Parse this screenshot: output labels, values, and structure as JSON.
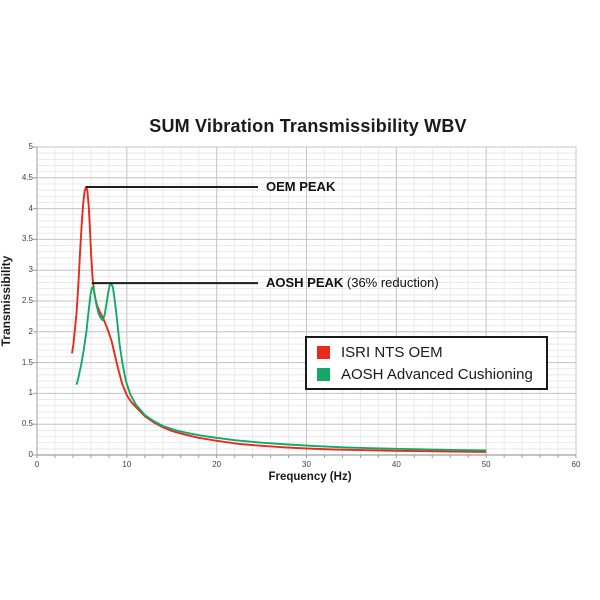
{
  "chart_data": {
    "type": "line",
    "title": "SUM Vibration Transmissibility WBV",
    "xlabel": "Frequency (Hz)",
    "ylabel": "Transmissibility",
    "xlim": [
      0,
      60
    ],
    "ylim": [
      0,
      5
    ],
    "x_major": 10,
    "x_minor": 2,
    "y_major": 0.5,
    "y_minor": 0.1,
    "x_tick_labels": [
      "0",
      "10",
      "20",
      "30",
      "40",
      "50",
      "60"
    ],
    "y_tick_labels": [
      "0",
      "0.5",
      "1",
      "1.5",
      "2",
      "2.5",
      "3",
      "3.5",
      "4",
      "4.5",
      "5"
    ],
    "grid": true,
    "legend_position": "middle-right",
    "style": {
      "grid_minor_color": "#e9e9e9",
      "grid_major_color": "#c6c6c6",
      "axis_color": "#9f9f9f",
      "annotation_color": "#1c1c1c",
      "text_color": "#1a1a1a"
    },
    "series": [
      {
        "name": "ISRI NTS OEM",
        "color": "#e8291c",
        "points": [
          [
            3.9,
            1.65
          ],
          [
            4.05,
            1.8
          ],
          [
            4.2,
            2.0
          ],
          [
            4.4,
            2.3
          ],
          [
            4.6,
            2.75
          ],
          [
            4.8,
            3.3
          ],
          [
            5.0,
            3.8
          ],
          [
            5.15,
            4.1
          ],
          [
            5.3,
            4.28
          ],
          [
            5.45,
            4.35
          ],
          [
            5.6,
            4.3
          ],
          [
            5.75,
            4.05
          ],
          [
            5.9,
            3.65
          ],
          [
            6.05,
            3.2
          ],
          [
            6.2,
            2.85
          ],
          [
            6.4,
            2.6
          ],
          [
            6.7,
            2.42
          ],
          [
            7.0,
            2.32
          ],
          [
            7.3,
            2.24
          ],
          [
            7.7,
            2.1
          ],
          [
            8.0,
            1.98
          ],
          [
            8.3,
            1.85
          ],
          [
            8.7,
            1.6
          ],
          [
            9.0,
            1.42
          ],
          [
            9.5,
            1.15
          ],
          [
            10.0,
            0.97
          ],
          [
            10.5,
            0.86
          ],
          [
            11.0,
            0.78
          ],
          [
            12.0,
            0.63
          ],
          [
            13.0,
            0.53
          ],
          [
            14.0,
            0.45
          ],
          [
            15.0,
            0.39
          ],
          [
            16.5,
            0.33
          ],
          [
            18.0,
            0.28
          ],
          [
            20.0,
            0.23
          ],
          [
            22.5,
            0.18
          ],
          [
            25.0,
            0.15
          ],
          [
            27.5,
            0.125
          ],
          [
            30.0,
            0.105
          ],
          [
            33.0,
            0.09
          ],
          [
            36.0,
            0.08
          ],
          [
            40.0,
            0.068
          ],
          [
            45.0,
            0.058
          ],
          [
            50.0,
            0.05
          ]
        ]
      },
      {
        "name": "AOSH Advanced Cushioning",
        "color": "#12a968",
        "points": [
          [
            4.4,
            1.14
          ],
          [
            4.6,
            1.25
          ],
          [
            4.9,
            1.45
          ],
          [
            5.2,
            1.7
          ],
          [
            5.5,
            2.0
          ],
          [
            5.75,
            2.35
          ],
          [
            5.95,
            2.6
          ],
          [
            6.1,
            2.71
          ],
          [
            6.25,
            2.73
          ],
          [
            6.4,
            2.63
          ],
          [
            6.6,
            2.45
          ],
          [
            6.85,
            2.3
          ],
          [
            7.1,
            2.22
          ],
          [
            7.3,
            2.19
          ],
          [
            7.5,
            2.26
          ],
          [
            7.7,
            2.42
          ],
          [
            7.9,
            2.62
          ],
          [
            8.1,
            2.76
          ],
          [
            8.25,
            2.79
          ],
          [
            8.45,
            2.72
          ],
          [
            8.65,
            2.52
          ],
          [
            8.9,
            2.2
          ],
          [
            9.2,
            1.8
          ],
          [
            9.5,
            1.5
          ],
          [
            9.9,
            1.2
          ],
          [
            10.4,
            0.98
          ],
          [
            11.0,
            0.82
          ],
          [
            12.0,
            0.65
          ],
          [
            13.0,
            0.55
          ],
          [
            14.0,
            0.47
          ],
          [
            15.5,
            0.4
          ],
          [
            17.0,
            0.35
          ],
          [
            18.5,
            0.31
          ],
          [
            20.0,
            0.28
          ],
          [
            22.0,
            0.24
          ],
          [
            25.0,
            0.2
          ],
          [
            28.0,
            0.17
          ],
          [
            31.0,
            0.145
          ],
          [
            34.0,
            0.125
          ],
          [
            37.0,
            0.11
          ],
          [
            40.0,
            0.1
          ],
          [
            44.0,
            0.088
          ],
          [
            47.0,
            0.08
          ],
          [
            50.0,
            0.075
          ]
        ]
      }
    ],
    "annotations": [
      {
        "label": "OEM PEAK",
        "note": "",
        "value": 4.35,
        "line_from_hz": 5.45,
        "line_to_hz": 24.6
      },
      {
        "label": "AOSH PEAK",
        "note": " (36% reduction)",
        "value": 2.79,
        "line_from_hz": 6.1,
        "line_to_hz": 24.6
      }
    ]
  }
}
